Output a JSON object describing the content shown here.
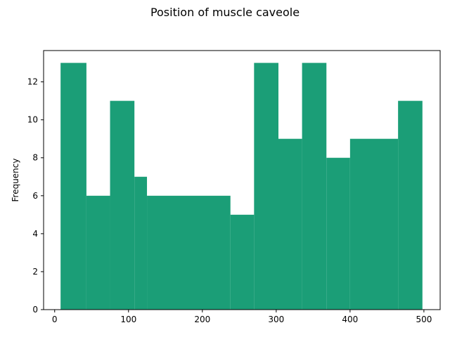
{
  "chart_data": {
    "type": "bar",
    "title": "Position of muscle caveole",
    "xlabel": "",
    "ylabel": "Frequency",
    "bins": [
      {
        "x0": 8,
        "x1": 43,
        "value": 13
      },
      {
        "x0": 43,
        "x1": 75,
        "value": 6
      },
      {
        "x0": 75,
        "x1": 108,
        "value": 11
      },
      {
        "x0": 108,
        "x1": 125,
        "value": 7
      },
      {
        "x0": 125,
        "x1": 238,
        "value": 6
      },
      {
        "x0": 238,
        "x1": 270,
        "value": 5
      },
      {
        "x0": 270,
        "x1": 303,
        "value": 13
      },
      {
        "x0": 303,
        "x1": 335,
        "value": 9
      },
      {
        "x0": 335,
        "x1": 368,
        "value": 13
      },
      {
        "x0": 368,
        "x1": 400,
        "value": 8
      },
      {
        "x0": 400,
        "x1": 465,
        "value": 9
      },
      {
        "x0": 465,
        "x1": 498,
        "value": 11
      }
    ],
    "xlim": [
      -15,
      522
    ],
    "ylim": [
      0,
      13.65
    ],
    "xticks": [
      0,
      100,
      200,
      300,
      400,
      500
    ],
    "yticks": [
      0,
      2,
      4,
      6,
      8,
      10,
      12
    ],
    "bar_color": "#1b9e77",
    "grid": false,
    "legend": false
  }
}
